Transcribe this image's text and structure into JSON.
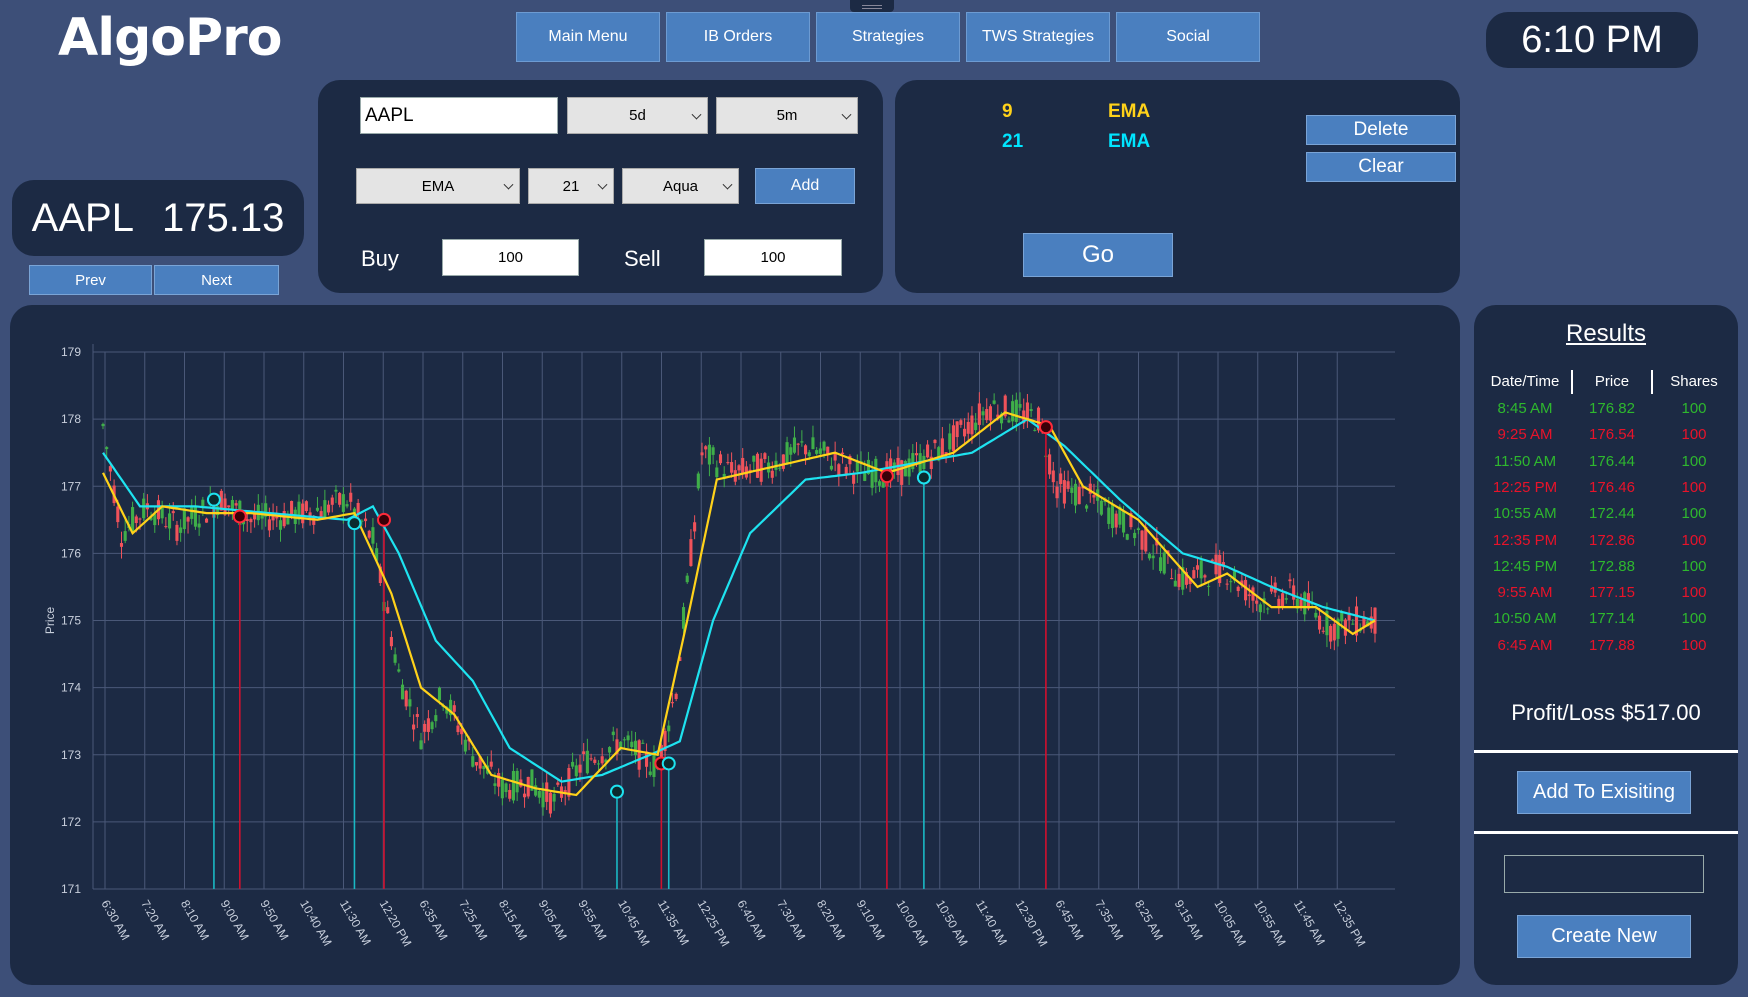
{
  "app": {
    "title": "AlgoPro",
    "clock": "6:10 PM"
  },
  "nav": [
    "Main Menu",
    "IB Orders",
    "Strategies",
    "TWS Strategies",
    "Social"
  ],
  "ticker": {
    "symbol": "AAPL",
    "price": "175.13",
    "prev": "Prev",
    "next": "Next"
  },
  "controls": {
    "symbol_value": "AAPL",
    "period": "5d",
    "interval": "5m",
    "indicator": "EMA",
    "length": "21",
    "color": "Aqua",
    "add": "Add",
    "buy_label": "Buy",
    "buy_value": "100",
    "sell_label": "Sell",
    "sell_value": "100"
  },
  "indicators": {
    "items": [
      {
        "length": "9",
        "type": "EMA",
        "color": "#ffd21a"
      },
      {
        "length": "21",
        "type": "EMA",
        "color": "#00e5ff"
      }
    ],
    "delete": "Delete",
    "clear": "Clear",
    "go": "Go"
  },
  "results": {
    "title": "Results",
    "headers": [
      "Date/Time",
      "Price",
      "Shares"
    ],
    "rows": [
      {
        "time": "8:45 AM",
        "price": "176.82",
        "shares": "100",
        "side": "buy"
      },
      {
        "time": "9:25 AM",
        "price": "176.54",
        "shares": "100",
        "side": "sell"
      },
      {
        "time": "11:50 AM",
        "price": "176.44",
        "shares": "100",
        "side": "buy"
      },
      {
        "time": "12:25 PM",
        "price": "176.46",
        "shares": "100",
        "side": "sell"
      },
      {
        "time": "10:55 AM",
        "price": "172.44",
        "shares": "100",
        "side": "buy"
      },
      {
        "time": "12:35 PM",
        "price": "172.86",
        "shares": "100",
        "side": "sell"
      },
      {
        "time": "12:45 PM",
        "price": "172.88",
        "shares": "100",
        "side": "buy"
      },
      {
        "time": "9:55 AM",
        "price": "177.15",
        "shares": "100",
        "side": "sell"
      },
      {
        "time": "10:50 AM",
        "price": "177.14",
        "shares": "100",
        "side": "buy"
      },
      {
        "time": "6:45 AM",
        "price": "177.88",
        "shares": "100",
        "side": "sell"
      }
    ],
    "pnl": "Profit/Loss $517.00",
    "add_existing": "Add To Exisiting",
    "name_value": "",
    "create_new": "Create New"
  },
  "colors": {
    "buy": "#2eb82e",
    "sell": "#e8132a",
    "up": "#3fae49",
    "down": "#f0525a",
    "ema9": "#ffd21a",
    "ema21": "#1ee3f0"
  },
  "chart_data": {
    "type": "candlestick",
    "ylabel": "Price",
    "ylim": [
      171,
      179
    ],
    "yticks": [
      179,
      178,
      177,
      176,
      175,
      174,
      173,
      172,
      171
    ],
    "categories": [
      "6:30 AM",
      "7:20 AM",
      "8:10 AM",
      "9:00 AM",
      "9:50 AM",
      "10:40 AM",
      "11:30 AM",
      "12:20 PM",
      "6:35 AM",
      "7:25 AM",
      "8:15 AM",
      "9:05 AM",
      "9:55 AM",
      "10:45 AM",
      "11:35 AM",
      "12:25 PM",
      "6:40 AM",
      "7:30 AM",
      "8:20 AM",
      "9:10 AM",
      "10:00 AM",
      "10:50 AM",
      "11:40 AM",
      "12:30 PM",
      "6:45 AM",
      "7:35 AM",
      "8:25 AM",
      "9:15 AM",
      "10:05 AM",
      "10:55 AM",
      "11:45 AM",
      "12:35 PM"
    ],
    "price_path": [
      [
        0,
        177.9
      ],
      [
        5,
        176.3
      ],
      [
        12,
        176.7
      ],
      [
        20,
        176.4
      ],
      [
        32,
        176.8
      ],
      [
        40,
        176.5
      ],
      [
        55,
        176.6
      ],
      [
        66,
        176.8
      ],
      [
        73,
        176.2
      ],
      [
        80,
        174.2
      ],
      [
        86,
        173.3
      ],
      [
        92,
        173.9
      ],
      [
        100,
        173.0
      ],
      [
        108,
        172.5
      ],
      [
        115,
        172.6
      ],
      [
        122,
        172.3
      ],
      [
        130,
        172.9
      ],
      [
        140,
        173.2
      ],
      [
        150,
        172.8
      ],
      [
        155,
        174.0
      ],
      [
        162,
        177.5
      ],
      [
        170,
        177.2
      ],
      [
        180,
        177.3
      ],
      [
        190,
        177.6
      ],
      [
        205,
        177.2
      ],
      [
        215,
        177.2
      ],
      [
        228,
        177.6
      ],
      [
        240,
        178.2
      ],
      [
        253,
        178.0
      ],
      [
        258,
        177.0
      ],
      [
        268,
        176.8
      ],
      [
        280,
        176.3
      ],
      [
        292,
        175.6
      ],
      [
        303,
        175.8
      ],
      [
        312,
        175.3
      ],
      [
        322,
        175.4
      ],
      [
        332,
        174.9
      ],
      [
        340,
        175.0
      ]
    ],
    "ema9": [
      [
        0,
        177.2
      ],
      [
        8,
        176.3
      ],
      [
        16,
        176.7
      ],
      [
        28,
        176.6
      ],
      [
        40,
        176.6
      ],
      [
        58,
        176.5
      ],
      [
        68,
        176.6
      ],
      [
        78,
        175.4
      ],
      [
        86,
        174.0
      ],
      [
        95,
        173.6
      ],
      [
        105,
        172.7
      ],
      [
        117,
        172.5
      ],
      [
        128,
        172.4
      ],
      [
        140,
        173.1
      ],
      [
        150,
        173.0
      ],
      [
        158,
        175.0
      ],
      [
        166,
        177.1
      ],
      [
        182,
        177.3
      ],
      [
        198,
        177.5
      ],
      [
        212,
        177.2
      ],
      [
        230,
        177.5
      ],
      [
        244,
        178.1
      ],
      [
        256,
        177.9
      ],
      [
        265,
        177.0
      ],
      [
        280,
        176.5
      ],
      [
        296,
        175.5
      ],
      [
        304,
        175.7
      ],
      [
        316,
        175.2
      ],
      [
        328,
        175.2
      ],
      [
        338,
        174.8
      ],
      [
        344,
        175.0
      ]
    ],
    "ema21": [
      [
        0,
        177.5
      ],
      [
        10,
        176.7
      ],
      [
        25,
        176.7
      ],
      [
        45,
        176.6
      ],
      [
        66,
        176.5
      ],
      [
        73,
        176.7
      ],
      [
        80,
        176.0
      ],
      [
        90,
        174.7
      ],
      [
        100,
        174.1
      ],
      [
        110,
        173.1
      ],
      [
        124,
        172.6
      ],
      [
        135,
        172.7
      ],
      [
        148,
        173.0
      ],
      [
        156,
        173.2
      ],
      [
        165,
        175.0
      ],
      [
        175,
        176.3
      ],
      [
        190,
        177.1
      ],
      [
        205,
        177.2
      ],
      [
        215,
        177.3
      ],
      [
        235,
        177.5
      ],
      [
        250,
        178.0
      ],
      [
        260,
        177.6
      ],
      [
        275,
        176.8
      ],
      [
        292,
        176.0
      ],
      [
        304,
        175.8
      ],
      [
        316,
        175.5
      ],
      [
        330,
        175.2
      ],
      [
        344,
        175.0
      ]
    ],
    "markers": [
      {
        "i": 30,
        "y": 176.8,
        "side": "buy",
        "low": 171.0
      },
      {
        "i": 37,
        "y": 176.55,
        "side": "sell",
        "low": 171.0
      },
      {
        "i": 68,
        "y": 176.45,
        "side": "buy",
        "low": 171.0
      },
      {
        "i": 76,
        "y": 176.5,
        "side": "sell",
        "low": 171.0
      },
      {
        "i": 139,
        "y": 172.45,
        "side": "buy",
        "low": 171.0
      },
      {
        "i": 151,
        "y": 172.87,
        "side": "sell",
        "low": 171.0
      },
      {
        "i": 153,
        "y": 172.87,
        "side": "buy",
        "low": 171.0
      },
      {
        "i": 212,
        "y": 177.15,
        "side": "sell",
        "low": 171.0
      },
      {
        "i": 222,
        "y": 177.13,
        "side": "buy",
        "low": 171.0
      },
      {
        "i": 255,
        "y": 177.88,
        "side": "sell",
        "low": 171.0
      }
    ]
  }
}
